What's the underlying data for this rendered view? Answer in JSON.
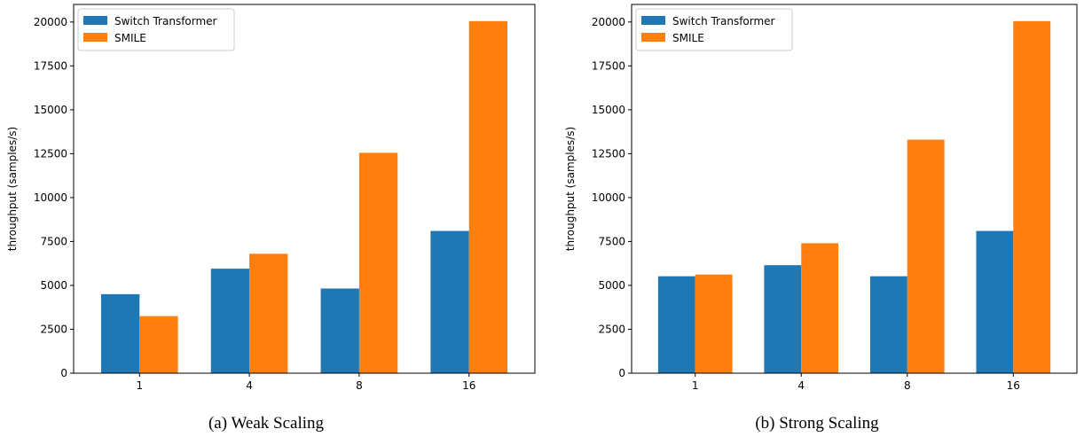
{
  "figure": {
    "colors": {
      "switch": "#1f77b4",
      "smile": "#ff7f0e",
      "axis": "#000000",
      "legend_border": "#cccccc"
    }
  },
  "chart_data": [
    {
      "type": "bar",
      "caption": "(a)  Weak Scaling",
      "ylabel": "throughput (samples/s)",
      "xlabel": "",
      "categories": [
        "1",
        "4",
        "8",
        "16"
      ],
      "ylim": [
        0,
        21000
      ],
      "yticks": [
        0,
        2500,
        5000,
        7500,
        10000,
        12500,
        15000,
        17500,
        20000
      ],
      "legend_position": "top-left",
      "grid": false,
      "series": [
        {
          "name": "Switch Transformer",
          "color": "#1f77b4",
          "values": [
            4500,
            5950,
            4820,
            8100
          ]
        },
        {
          "name": "SMILE",
          "color": "#ff7f0e",
          "values": [
            3250,
            6800,
            12550,
            20050
          ]
        }
      ]
    },
    {
      "type": "bar",
      "caption": "(b)  Strong Scaling",
      "ylabel": "throughput (samples/s)",
      "xlabel": "",
      "categories": [
        "1",
        "4",
        "8",
        "16"
      ],
      "ylim": [
        0,
        21000
      ],
      "yticks": [
        0,
        2500,
        5000,
        7500,
        10000,
        12500,
        15000,
        17500,
        20000
      ],
      "legend_position": "top-left",
      "grid": false,
      "series": [
        {
          "name": "Switch Transformer",
          "color": "#1f77b4",
          "values": [
            5520,
            6150,
            5520,
            8100
          ]
        },
        {
          "name": "SMILE",
          "color": "#ff7f0e",
          "values": [
            5620,
            7400,
            13300,
            20050
          ]
        }
      ]
    }
  ]
}
